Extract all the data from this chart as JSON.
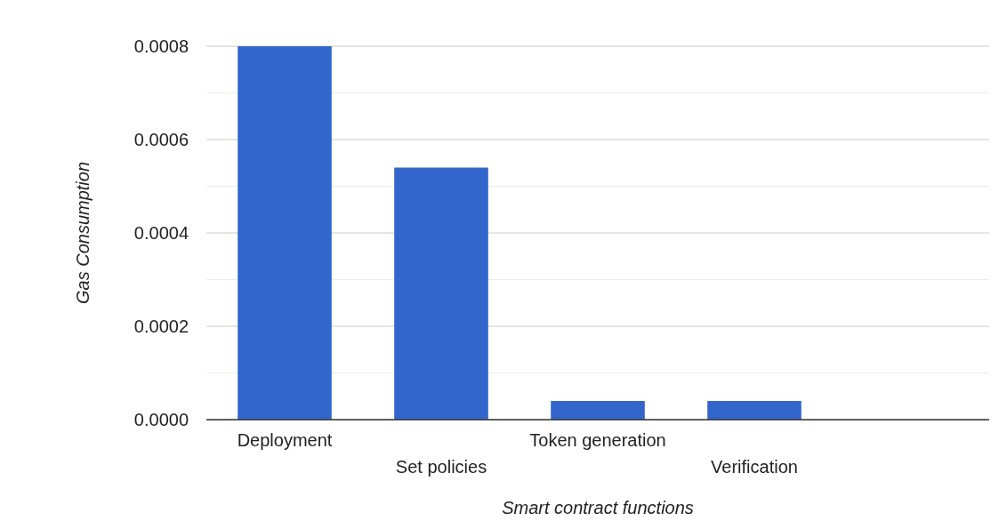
{
  "chart_data": {
    "type": "bar",
    "xlabel": "Smart contract functions",
    "ylabel": "Gas Consumption",
    "categories": [
      "Deployment",
      "Set policies",
      "Token generation",
      "Verification",
      null
    ],
    "values": [
      0.0008,
      0.00054,
      4e-05,
      4e-05,
      null
    ],
    "color": "#3366cc",
    "ylim": [
      0,
      0.0008
    ],
    "yticks": [
      "0.0000",
      {
        "value": 0.0001,
        "label": null
      },
      {
        "value": 0.0002,
        "label": "0.0002"
      },
      {
        "value": 0.0003,
        "label": null
      },
      {
        "value": 0.0004,
        "label": "0.0004"
      },
      {
        "value": 0.0005,
        "label": null
      },
      {
        "value": 0.0006,
        "label": "0.0006"
      },
      {
        "value": 0.0007,
        "label": null
      },
      {
        "value": 0.0008,
        "label": "0.0008"
      }
    ],
    "grid": "y"
  }
}
